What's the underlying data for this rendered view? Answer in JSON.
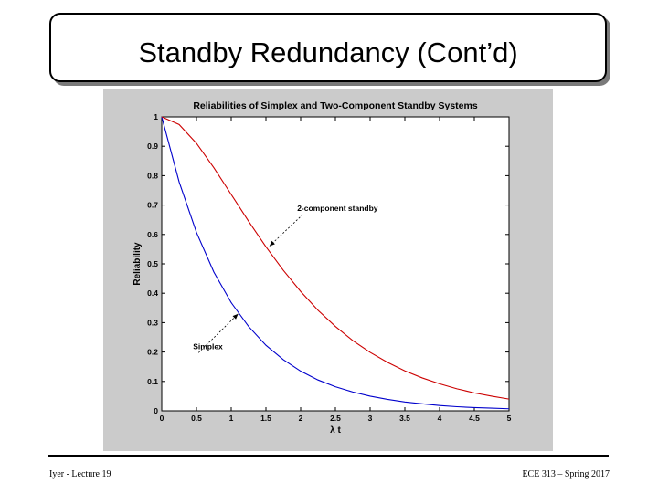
{
  "slide": {
    "title": "Standby Redundancy (Cont’d)",
    "footer_left": "Iyer - Lecture 19",
    "footer_right": "ECE 313 – Spring 2017"
  },
  "chart_data": {
    "type": "line",
    "title": "Reliabilities of Simplex and Two-Component Standby Systems",
    "xlabel": "λ t",
    "ylabel": "Reliability",
    "xlim": [
      0,
      5
    ],
    "ylim": [
      0,
      1
    ],
    "xticks": [
      0,
      0.5,
      1,
      1.5,
      2,
      2.5,
      3,
      3.5,
      4,
      4.5,
      5
    ],
    "xtick_labels": [
      "0",
      "0.5",
      "1",
      "1.5",
      "2",
      "2.5",
      "3",
      "3.5",
      "4",
      "4.5",
      "5"
    ],
    "yticks": [
      0,
      0.1,
      0.2,
      0.3,
      0.4,
      0.5,
      0.6,
      0.7,
      0.8,
      0.9,
      1
    ],
    "ytick_labels": [
      "0",
      "0.1",
      "0.2",
      "0.3",
      "0.4",
      "0.5",
      "0.6",
      "0.7",
      "0.8",
      "0.9",
      "1"
    ],
    "grid": false,
    "x": [
      0,
      0.25,
      0.5,
      0.75,
      1,
      1.25,
      1.5,
      1.75,
      2,
      2.25,
      2.5,
      2.75,
      3,
      3.25,
      3.5,
      3.75,
      4,
      4.25,
      4.5,
      4.75,
      5
    ],
    "series": [
      {
        "color": "#0000cc",
        "values": [
          1.0,
          0.779,
          0.607,
          0.472,
          0.368,
          0.287,
          0.223,
          0.174,
          0.135,
          0.105,
          0.082,
          0.064,
          0.05,
          0.039,
          0.03,
          0.024,
          0.018,
          0.014,
          0.011,
          0.009,
          0.007
        ]
      },
      {
        "color": "#cc0000",
        "values": [
          1.0,
          0.974,
          0.91,
          0.827,
          0.736,
          0.645,
          0.558,
          0.478,
          0.406,
          0.342,
          0.287,
          0.239,
          0.199,
          0.165,
          0.136,
          0.112,
          0.092,
          0.075,
          0.061,
          0.05,
          0.04
        ]
      }
    ],
    "annotations": [
      {
        "text": "2-component standby",
        "series_index": 1,
        "x": 1.55,
        "y": 0.56,
        "text_x": 1.95,
        "text_y": 0.68
      },
      {
        "text": "Simplex",
        "series_index": 0,
        "x": 1.1,
        "y": 0.33,
        "text_x": 0.45,
        "text_y": 0.21
      }
    ]
  }
}
